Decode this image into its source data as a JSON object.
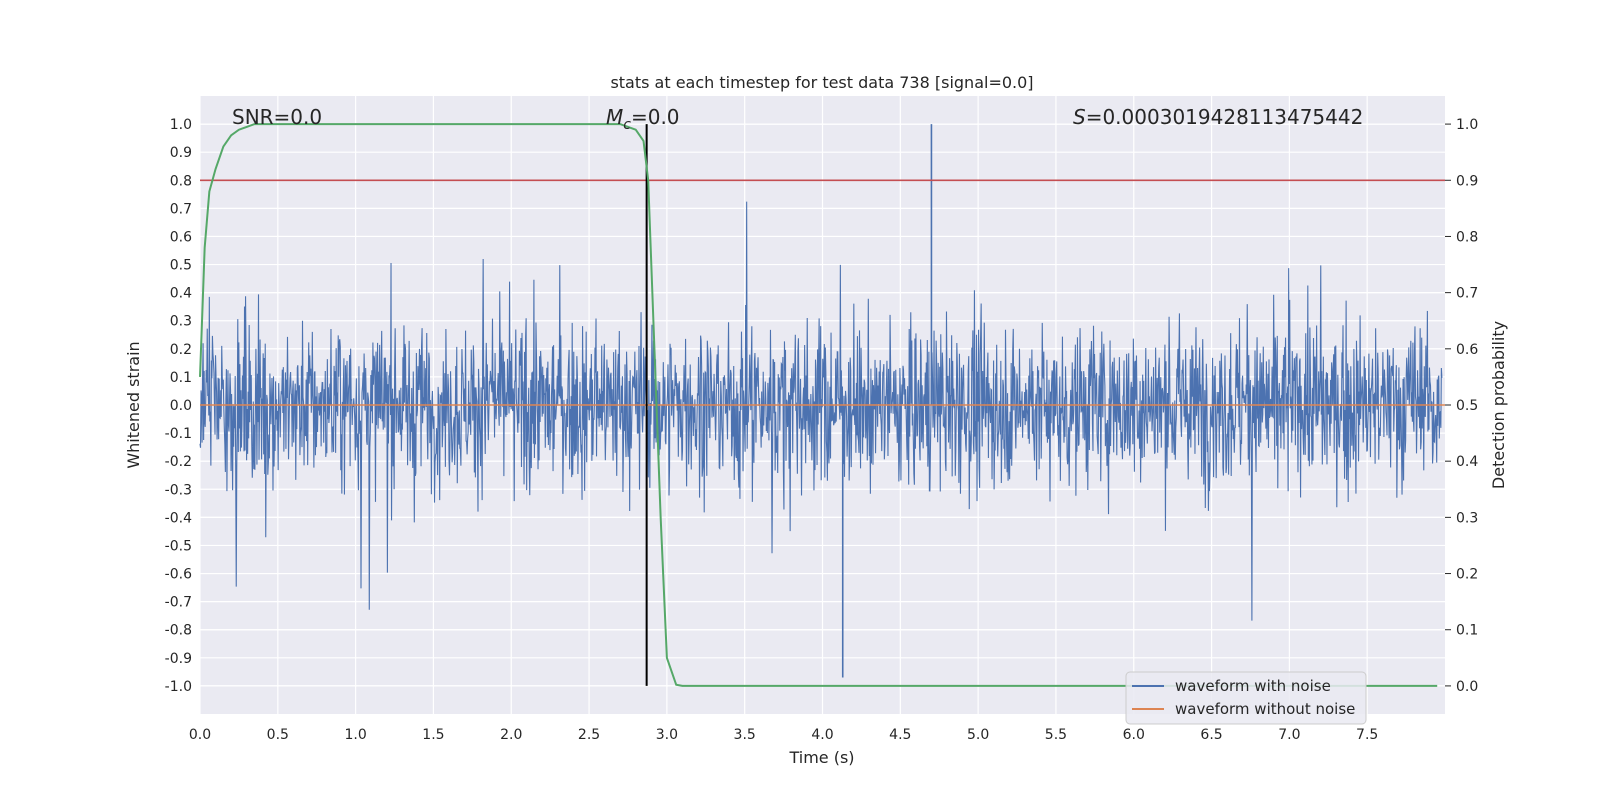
{
  "chart_data": {
    "type": "line",
    "title": "stats at each timestep for test data 738 [signal=0.0]",
    "xlabel": "Time (s)",
    "ylabel": "Whitened strain",
    "y2label": "Detection probability",
    "xlim": [
      0.0,
      8.0
    ],
    "ylim": [
      -1.1,
      1.1
    ],
    "y2lim": [
      -0.05,
      1.05
    ],
    "x_ticks": [
      "0.0",
      "0.5",
      "1.0",
      "1.5",
      "2.0",
      "2.5",
      "3.0",
      "3.5",
      "4.0",
      "4.5",
      "5.0",
      "5.5",
      "6.0",
      "6.5",
      "7.0",
      "7.5"
    ],
    "y_ticks": [
      "-1.0",
      "-0.9",
      "-0.8",
      "-0.7",
      "-0.6",
      "-0.5",
      "-0.4",
      "-0.3",
      "-0.2",
      "-0.1",
      "0.0",
      "0.1",
      "0.2",
      "0.3",
      "0.4",
      "0.5",
      "0.6",
      "0.7",
      "0.8",
      "0.9",
      "1.0"
    ],
    "y2_ticks": [
      "0.0",
      "0.1",
      "0.2",
      "0.3",
      "0.4",
      "0.5",
      "0.6",
      "0.7",
      "0.8",
      "0.9",
      "1.0"
    ],
    "grid": true,
    "legend_position": "lower-right",
    "annotations": {
      "snr": "SNR=0.0",
      "mc_symbol": "M",
      "mc_sub": "c",
      "mc_value": "=0.0",
      "s_symbol": "S",
      "s_value": "=0.0003019428113475442"
    },
    "series": [
      {
        "name": "waveform with noise",
        "color": "#4c72b0",
        "description_type": "noise",
        "amplitude_typical": 0.4,
        "peak_max": 1.0,
        "peak_min": -0.97
      },
      {
        "name": "waveform without noise",
        "color": "#dd8452",
        "y_constant": 0.0
      }
    ],
    "detection_probability": {
      "color": "#55a868",
      "x": [
        0.0,
        0.03,
        0.06,
        0.1,
        0.15,
        0.2,
        0.25,
        0.3,
        0.35,
        0.4,
        0.5,
        1.0,
        2.0,
        2.5,
        2.7,
        2.8,
        2.85,
        2.88,
        2.92,
        2.96,
        3.0,
        3.06,
        3.1,
        4.0,
        5.0,
        6.0,
        7.0,
        7.95
      ],
      "y": [
        0.55,
        0.78,
        0.88,
        0.92,
        0.96,
        0.98,
        0.99,
        0.995,
        1.0,
        1.0,
        1.0,
        1.0,
        1.0,
        1.0,
        1.0,
        0.99,
        0.97,
        0.9,
        0.6,
        0.3,
        0.05,
        0.002,
        0.0,
        0.0,
        0.0,
        0.0,
        0.0,
        0.0
      ]
    },
    "threshold_line": {
      "y2": 0.9,
      "color": "#c44e52"
    },
    "vertical_line": {
      "x": 2.87,
      "color": "#000000"
    }
  }
}
